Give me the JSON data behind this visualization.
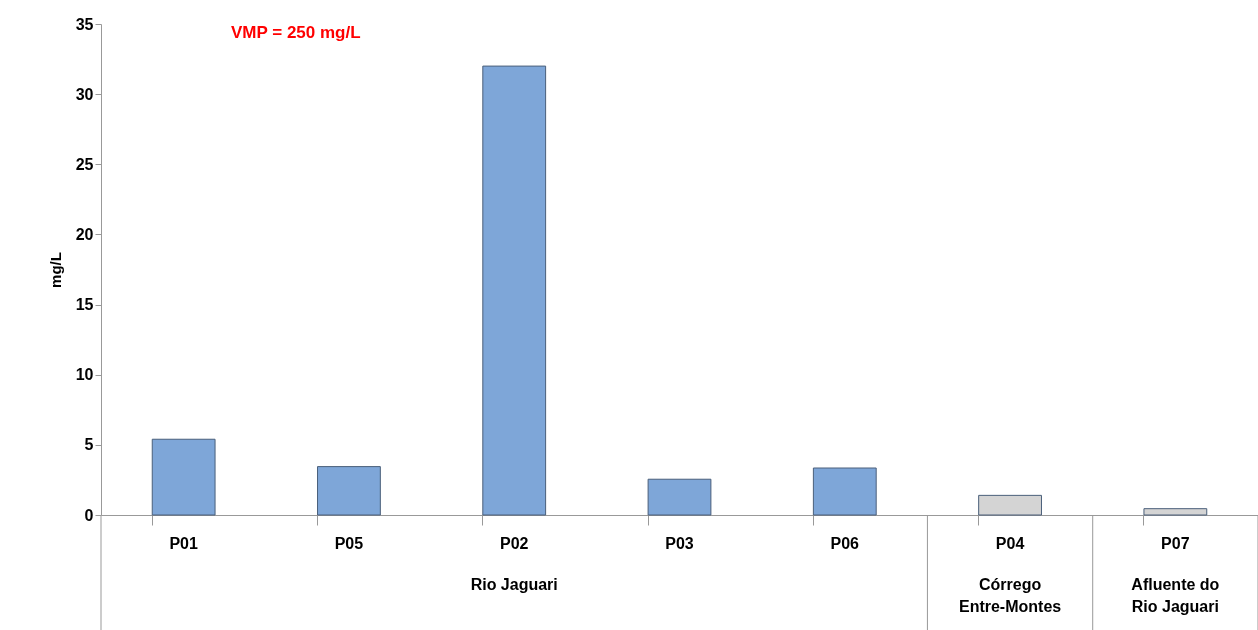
{
  "chart_data": {
    "type": "bar",
    "ylabel": "mg/L",
    "categories": [
      "P01",
      "P05",
      "P02",
      "P03",
      "P06",
      "P04",
      "P07"
    ],
    "values": [
      5.4,
      3.45,
      32.0,
      2.55,
      3.35,
      1.4,
      0.45
    ],
    "colors": [
      "#7ea6d8",
      "#7ea6d8",
      "#7ea6d8",
      "#7ea6d8",
      "#7ea6d8",
      "#d4d4d4",
      "#d4d4d4"
    ],
    "ylim": [
      0,
      35
    ],
    "yticks": [
      0,
      5,
      10,
      15,
      20,
      25,
      30,
      35
    ],
    "grid": false,
    "annotations": [
      "VMP = 250 mg/L",
      "Rio Jaguari",
      "Córrego Entre-Montes",
      "Afluente do Rio Jaguari"
    ]
  }
}
